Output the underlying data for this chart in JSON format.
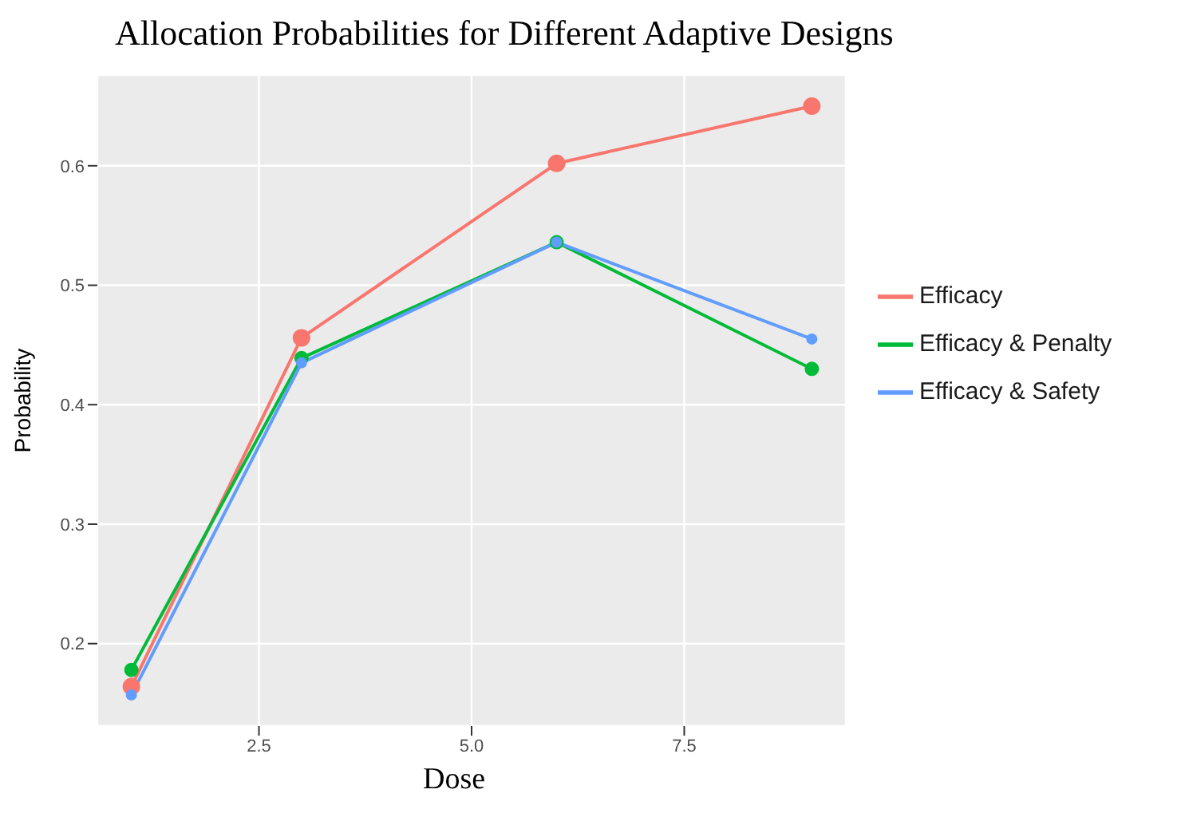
{
  "chart_data": {
    "type": "line",
    "title": "Allocation Probabilities for Different Adaptive Designs",
    "xlabel": "Dose",
    "ylabel": "Probability",
    "x": [
      1,
      3,
      6,
      9
    ],
    "series": [
      {
        "name": "Efficacy",
        "color": "#f8766d",
        "values": [
          0.164,
          0.456,
          0.602,
          0.65
        ]
      },
      {
        "name": "Efficacy & Penalty",
        "color": "#00ba38",
        "values": [
          0.178,
          0.439,
          0.536,
          0.43
        ]
      },
      {
        "name": "Efficacy & Safety",
        "color": "#619cff",
        "values": [
          0.157,
          0.435,
          0.536,
          0.455
        ]
      }
    ],
    "xlim": [
      0.6,
      9.4
    ],
    "xticks": [
      {
        "value": 2.5,
        "label": "2.5"
      },
      {
        "value": 5,
        "label": "5.0"
      },
      {
        "value": 7.5,
        "label": "7.5"
      }
    ],
    "ylim": [
      0.131,
      0.676
    ],
    "yticks": [
      0.2,
      0.3,
      0.4,
      0.5,
      0.6
    ],
    "grid": true,
    "legend": "right",
    "marker": "circle",
    "line_style": "solid"
  }
}
